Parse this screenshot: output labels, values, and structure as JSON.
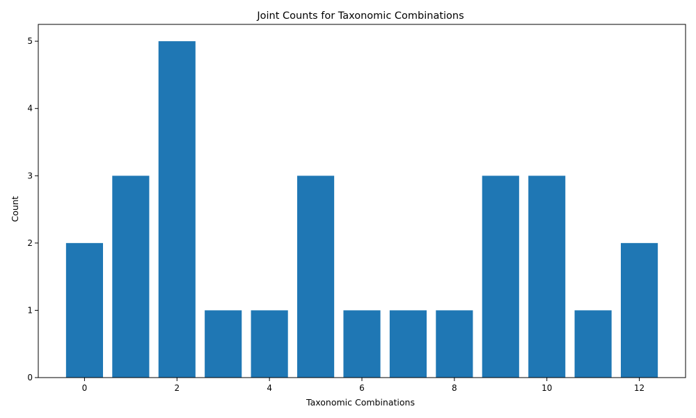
{
  "chart_data": {
    "type": "bar",
    "title": "Joint Counts for Taxonomic Combinations",
    "xlabel": "Taxonomic Combinations",
    "ylabel": "Count",
    "x": [
      0,
      1,
      2,
      3,
      4,
      5,
      6,
      7,
      8,
      9,
      10,
      11,
      12
    ],
    "values": [
      2,
      3,
      5,
      1,
      1,
      3,
      1,
      1,
      1,
      3,
      3,
      1,
      2
    ],
    "xlim": [
      -1,
      13
    ],
    "ylim": [
      0,
      5.25
    ],
    "xticks": [
      0,
      2,
      4,
      6,
      8,
      10,
      12
    ],
    "yticks": [
      0,
      1,
      2,
      3,
      4,
      5
    ],
    "bar_width": 0.8,
    "bar_color": "#1f77b4",
    "grid": false,
    "legend": "none"
  }
}
